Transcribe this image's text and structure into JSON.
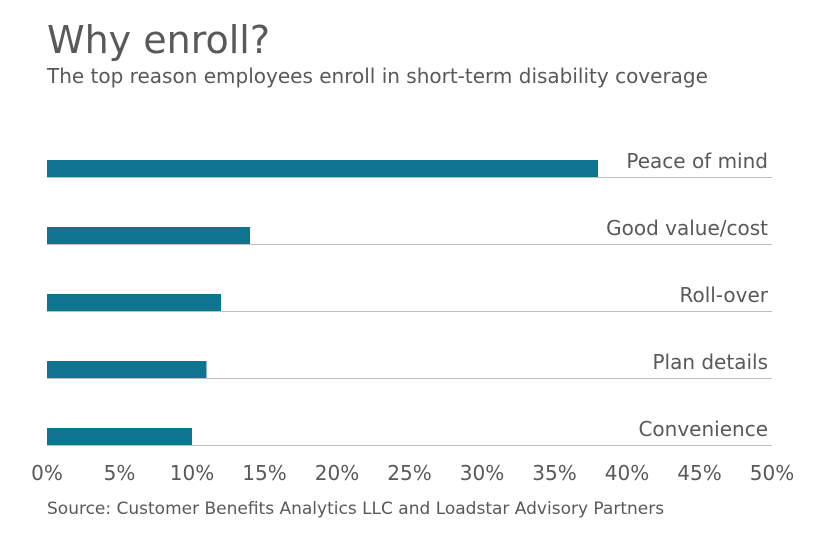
{
  "title": "Why enroll?",
  "subtitle": "The top reason employees enroll in short-term disability coverage",
  "source": "Source: Customer Benefits Analytics LLC and Loadstar Advisory Partners",
  "colors": {
    "bar": "#0e7490",
    "baseline": "#bfbfbf",
    "text": "#595959"
  },
  "chart_data": {
    "type": "bar",
    "orientation": "horizontal",
    "categories": [
      "Peace of mind",
      "Good value/cost",
      "Roll-over",
      "Plan details",
      "Convenience"
    ],
    "values": [
      38,
      14,
      12,
      11,
      10
    ],
    "xlim": [
      0,
      50
    ],
    "x_ticks": [
      "0%",
      "5%",
      "10%",
      "15%",
      "20%",
      "25%",
      "30%",
      "35%",
      "40%",
      "45%",
      "50%"
    ],
    "x_tick_values": [
      0,
      5,
      10,
      15,
      20,
      25,
      30,
      35,
      40,
      45,
      50
    ],
    "grid": false,
    "legend": "none"
  }
}
